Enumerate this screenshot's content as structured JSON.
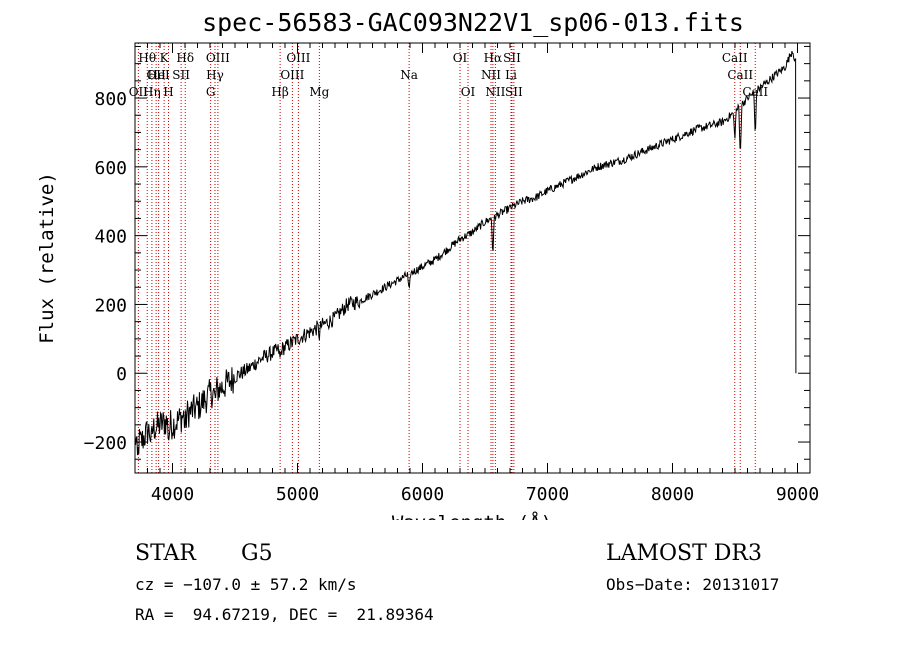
{
  "chart_data": {
    "type": "line",
    "title": "spec-56583-GAC093N22V1_sp06-013.fits",
    "xlabel": "Wavelength (Å)",
    "ylabel": "Flux (relative)",
    "xlim": [
      3700,
      9100
    ],
    "ylim": [
      -290,
      960
    ],
    "xticks": [
      4000,
      5000,
      6000,
      7000,
      8000,
      9000
    ],
    "yticks": [
      -200,
      0,
      200,
      400,
      600,
      800
    ],
    "grid": false,
    "series": [
      {
        "name": "spectrum",
        "x": [
          3700,
          3750,
          3800,
          3850,
          3900,
          3950,
          4000,
          4100,
          4200,
          4300,
          4400,
          4500,
          4600,
          4700,
          4800,
          4900,
          5000,
          5100,
          5200,
          5300,
          5400,
          5500,
          5600,
          5700,
          5800,
          5900,
          6000,
          6100,
          6200,
          6300,
          6400,
          6500,
          6600,
          6700,
          6800,
          6900,
          7000,
          7200,
          7400,
          7600,
          7800,
          8000,
          8200,
          8400,
          8500,
          8600,
          8700,
          8800,
          8900,
          8960,
          9000
        ],
        "y": [
          -190,
          -200,
          -170,
          -160,
          -150,
          -140,
          -150,
          -120,
          -100,
          -60,
          -40,
          -10,
          10,
          40,
          60,
          75,
          100,
          120,
          140,
          160,
          200,
          210,
          230,
          250,
          270,
          290,
          310,
          330,
          360,
          390,
          410,
          440,
          460,
          480,
          500,
          510,
          530,
          565,
          600,
          620,
          650,
          680,
          710,
          730,
          760,
          800,
          830,
          860,
          890,
          940,
          880
        ],
        "absorption_dips": [
          {
            "x": 3720,
            "depth": 60
          },
          {
            "x": 3830,
            "depth": 40
          },
          {
            "x": 3970,
            "depth": 40
          },
          {
            "x": 4102,
            "depth": 40
          },
          {
            "x": 4341,
            "depth": 30
          },
          {
            "x": 4861,
            "depth": 30
          },
          {
            "x": 5175,
            "depth": 25
          },
          {
            "x": 5893,
            "depth": 60
          },
          {
            "x": 6563,
            "depth": 110
          },
          {
            "x": 8498,
            "depth": 80
          },
          {
            "x": 8542,
            "depth": 150
          },
          {
            "x": 8662,
            "depth": 130
          }
        ],
        "end_drop": {
          "x": 8985,
          "to": 0
        }
      }
    ],
    "line_markers": [
      {
        "x": 3727,
        "label": "OII",
        "row": 2
      },
      {
        "x": 3798,
        "label": "Hθ",
        "row": 0
      },
      {
        "x": 3835,
        "label": "Hη",
        "row": 2
      },
      {
        "x": 3869,
        "label": "OII",
        "row": 1
      },
      {
        "x": 3889,
        "label": "HeI",
        "row": 1
      },
      {
        "x": 3933,
        "label": "K",
        "row": 0
      },
      {
        "x": 3968,
        "label": "H",
        "row": 2
      },
      {
        "x": 4069,
        "label": "SII",
        "row": 1
      },
      {
        "x": 4102,
        "label": "Hδ",
        "row": 0
      },
      {
        "x": 4305,
        "label": "G",
        "row": 2
      },
      {
        "x": 4340,
        "label": "Hγ",
        "row": 1
      },
      {
        "x": 4363,
        "label": "OIII",
        "row": 0
      },
      {
        "x": 4861,
        "label": "Hβ",
        "row": 2
      },
      {
        "x": 4959,
        "label": "OIII",
        "row": 1
      },
      {
        "x": 5007,
        "label": "OIII",
        "row": 0
      },
      {
        "x": 5175,
        "label": "Mg",
        "row": 2
      },
      {
        "x": 5893,
        "label": "Na",
        "row": 1
      },
      {
        "x": 6300,
        "label": "OI",
        "row": 0
      },
      {
        "x": 6364,
        "label": "OI",
        "row": 2
      },
      {
        "x": 6548,
        "label": "NII",
        "row": 1
      },
      {
        "x": 6563,
        "label": "Hα",
        "row": 0
      },
      {
        "x": 6583,
        "label": "NII",
        "row": 2
      },
      {
        "x": 6708,
        "label": "Li",
        "row": 1
      },
      {
        "x": 6716,
        "label": "SII",
        "row": 0
      },
      {
        "x": 6731,
        "label": "SII",
        "row": 2
      },
      {
        "x": 8498,
        "label": "CaII",
        "row": 0
      },
      {
        "x": 8542,
        "label": "CaII",
        "row": 1
      },
      {
        "x": 8662,
        "label": "CaII",
        "row": 2
      }
    ],
    "colors": {
      "spectrum": "#000000",
      "marker": "#cc0000",
      "axes": "#000000"
    }
  },
  "info": {
    "class": "STAR",
    "subclass": "G5",
    "survey": "LAMOST DR3",
    "cz": "cz = −107.0 ± 57.2 km/s",
    "obs_date": "Obs−Date: 20131017",
    "radec": "RA =  94.67219, DEC =  21.89364"
  }
}
